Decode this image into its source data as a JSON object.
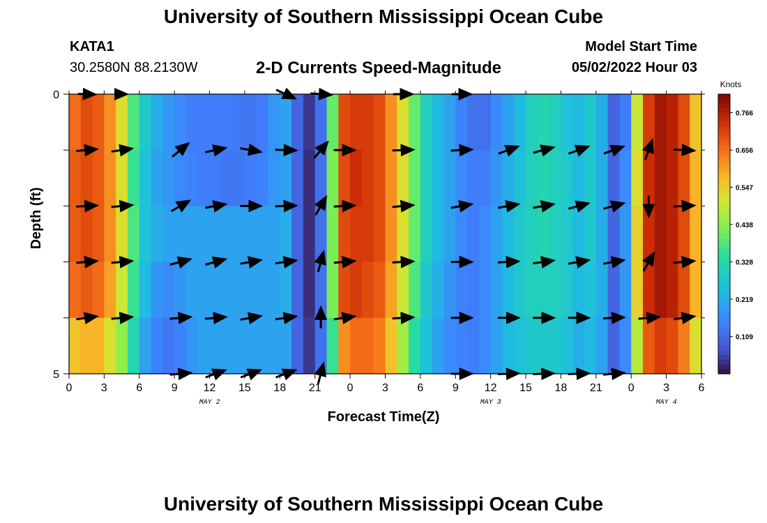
{
  "header": {
    "title": "University of Southern Mississippi Ocean Cube",
    "station": "KATA1",
    "coordinates": "30.2580N  88.2130W",
    "subtitle": "2-D Currents Speed-Magnitude",
    "model_start_label": "Model Start Time",
    "model_start_value": "05/02/2022 Hour 03"
  },
  "footer": {
    "title": "University of Southern Mississippi Ocean Cube"
  },
  "colors": {
    "background": "#ffffff",
    "arrow": "#000000"
  },
  "chart_data": {
    "type": "heatmap",
    "title": "2-D Currents Speed-Magnitude",
    "xlabel": "Forecast Time(Z)",
    "ylabel": "Depth (ft)",
    "x_tick_labels": [
      "0",
      "3",
      "6",
      "9",
      "12",
      "15",
      "18",
      "21",
      "0",
      "3",
      "6",
      "9",
      "12",
      "15",
      "18",
      "21",
      "0",
      "3",
      "6"
    ],
    "y_tick_labels": [
      "0",
      "5"
    ],
    "ylim": [
      0,
      5
    ],
    "date_labels": [
      {
        "label": "MAY 2",
        "hour_index": 12
      },
      {
        "label": "MAY 3",
        "hour_index": 36
      },
      {
        "label": "MAY 4",
        "hour_index": 51
      }
    ],
    "colorbar": {
      "label": "Knots",
      "range": [
        0.0,
        0.82
      ],
      "ticks": [
        "0.766",
        "0.656",
        "0.547",
        "0.438",
        "0.328",
        "0.219",
        "0.109"
      ],
      "tick_values": [
        0.766,
        0.656,
        0.547,
        0.438,
        0.328,
        0.219,
        0.109
      ]
    },
    "hours": 54,
    "depth_levels": 5,
    "speed_knots": [
      [
        0.66,
        0.7,
        0.68,
        0.62,
        0.52,
        0.38,
        0.28,
        0.22,
        0.18,
        0.16,
        0.14,
        0.14,
        0.14,
        0.14,
        0.13,
        0.13,
        0.14,
        0.18,
        0.2,
        0.1,
        0.04,
        0.12,
        0.4,
        0.7,
        0.72,
        0.72,
        0.7,
        0.62,
        0.52,
        0.4,
        0.3,
        0.24,
        0.2,
        0.15,
        0.12,
        0.12,
        0.16,
        0.2,
        0.24,
        0.3,
        0.32,
        0.3,
        0.26,
        0.24,
        0.28,
        0.22,
        0.1,
        0.14,
        0.5,
        0.72,
        0.78,
        0.76,
        0.7,
        0.56
      ],
      [
        0.68,
        0.7,
        0.68,
        0.62,
        0.52,
        0.36,
        0.26,
        0.2,
        0.18,
        0.16,
        0.15,
        0.14,
        0.14,
        0.13,
        0.13,
        0.14,
        0.15,
        0.18,
        0.2,
        0.1,
        0.03,
        0.12,
        0.42,
        0.7,
        0.74,
        0.72,
        0.7,
        0.62,
        0.52,
        0.4,
        0.3,
        0.24,
        0.2,
        0.16,
        0.14,
        0.14,
        0.18,
        0.22,
        0.26,
        0.3,
        0.32,
        0.3,
        0.28,
        0.24,
        0.28,
        0.22,
        0.1,
        0.16,
        0.52,
        0.74,
        0.78,
        0.76,
        0.7,
        0.58
      ],
      [
        0.68,
        0.7,
        0.68,
        0.62,
        0.52,
        0.38,
        0.26,
        0.22,
        0.2,
        0.2,
        0.2,
        0.2,
        0.2,
        0.2,
        0.2,
        0.2,
        0.2,
        0.2,
        0.22,
        0.1,
        0.03,
        0.12,
        0.42,
        0.7,
        0.72,
        0.72,
        0.7,
        0.62,
        0.52,
        0.4,
        0.3,
        0.24,
        0.2,
        0.16,
        0.14,
        0.16,
        0.2,
        0.24,
        0.28,
        0.3,
        0.32,
        0.3,
        0.28,
        0.24,
        0.28,
        0.22,
        0.1,
        0.18,
        0.54,
        0.74,
        0.78,
        0.76,
        0.7,
        0.58
      ],
      [
        0.66,
        0.68,
        0.66,
        0.6,
        0.5,
        0.36,
        0.24,
        0.18,
        0.16,
        0.18,
        0.2,
        0.2,
        0.2,
        0.2,
        0.2,
        0.2,
        0.2,
        0.2,
        0.22,
        0.1,
        0.03,
        0.12,
        0.42,
        0.7,
        0.72,
        0.7,
        0.68,
        0.6,
        0.5,
        0.38,
        0.28,
        0.22,
        0.18,
        0.15,
        0.14,
        0.16,
        0.2,
        0.24,
        0.28,
        0.3,
        0.3,
        0.3,
        0.28,
        0.24,
        0.26,
        0.22,
        0.1,
        0.18,
        0.54,
        0.74,
        0.78,
        0.76,
        0.7,
        0.58
      ],
      [
        0.56,
        0.58,
        0.58,
        0.52,
        0.44,
        0.32,
        0.2,
        0.15,
        0.13,
        0.15,
        0.18,
        0.2,
        0.2,
        0.2,
        0.2,
        0.2,
        0.2,
        0.2,
        0.2,
        0.1,
        0.04,
        0.12,
        0.36,
        0.62,
        0.66,
        0.66,
        0.64,
        0.56,
        0.46,
        0.34,
        0.26,
        0.2,
        0.16,
        0.15,
        0.14,
        0.16,
        0.2,
        0.24,
        0.26,
        0.28,
        0.28,
        0.28,
        0.26,
        0.22,
        0.24,
        0.2,
        0.1,
        0.16,
        0.48,
        0.68,
        0.72,
        0.7,
        0.64,
        0.52
      ]
    ],
    "arrow_hours": [
      1,
      4,
      9,
      12,
      15,
      18,
      21,
      23,
      28,
      33,
      37,
      40,
      43,
      46,
      49,
      52
    ],
    "arrow_depths": [
      0,
      1,
      2,
      3,
      4,
      5
    ],
    "arrows_deg": [
      [
        -2,
        0,
        null,
        null,
        null,
        -25,
        -4,
        null,
        0,
        0,
        null,
        null,
        null,
        null,
        null,
        null
      ],
      [
        5,
        8,
        40,
        12,
        -10,
        -2,
        50,
        0,
        2,
        3,
        20,
        15,
        20,
        20,
        70,
        -3
      ],
      [
        3,
        5,
        30,
        10,
        0,
        2,
        60,
        3,
        5,
        10,
        10,
        10,
        15,
        15,
        -90,
        3
      ],
      [
        5,
        5,
        15,
        15,
        10,
        8,
        75,
        5,
        3,
        0,
        3,
        8,
        10,
        10,
        60,
        5
      ],
      [
        8,
        5,
        5,
        5,
        10,
        8,
        90,
        8,
        3,
        0,
        0,
        0,
        0,
        3,
        5,
        8
      ],
      [
        null,
        null,
        5,
        20,
        20,
        20,
        75,
        null,
        null,
        0,
        2,
        2,
        2,
        5,
        null,
        null
      ]
    ],
    "arrows_len_frac": [
      [
        0.5,
        0.3,
        0,
        0,
        0,
        0.6,
        0.6,
        0,
        0.55,
        0.55,
        0,
        0,
        0,
        0,
        0,
        0
      ],
      [
        0.6,
        0.6,
        0.6,
        0.6,
        0.6,
        0.6,
        0.6,
        0.6,
        0.6,
        0.6,
        0.6,
        0.6,
        0.6,
        0.6,
        0.6,
        0.6
      ],
      [
        0.6,
        0.6,
        0.6,
        0.6,
        0.6,
        0.6,
        0.6,
        0.6,
        0.6,
        0.6,
        0.6,
        0.6,
        0.6,
        0.6,
        0.6,
        0.6
      ],
      [
        0.6,
        0.6,
        0.6,
        0.6,
        0.6,
        0.6,
        0.6,
        0.6,
        0.6,
        0.6,
        0.6,
        0.6,
        0.6,
        0.6,
        0.6,
        0.6
      ],
      [
        0.6,
        0.6,
        0.6,
        0.6,
        0.6,
        0.6,
        0.6,
        0.6,
        0.6,
        0.6,
        0.6,
        0.6,
        0.6,
        0.6,
        0.6,
        0.6
      ],
      [
        0,
        0,
        0.6,
        0.6,
        0.6,
        0.6,
        0.6,
        0,
        0,
        0.6,
        0.6,
        0.6,
        0.6,
        0.6,
        0,
        0
      ]
    ]
  }
}
